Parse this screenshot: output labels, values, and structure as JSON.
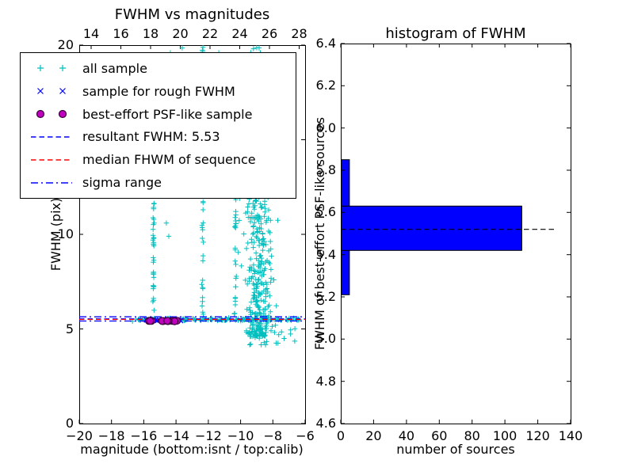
{
  "chart_data": [
    {
      "type": "scatter",
      "title": "FWHM vs magnitudes",
      "xlabel": "magnitude (bottom:isnt / top:calib)",
      "ylabel": "FWHM (pix)",
      "xlim": [
        -20,
        -6
      ],
      "ylim": [
        0,
        20
      ],
      "x_tick_values": [
        -20,
        -18,
        -16,
        -14,
        -12,
        -10,
        -8,
        -6
      ],
      "x_tick_labels": [
        "−20",
        "−18",
        "−16",
        "−14",
        "−12",
        "−10",
        "−8",
        "−6"
      ],
      "y_tick_values": [
        0,
        5,
        10,
        15,
        20
      ],
      "y_tick_labels": [
        "0",
        "5",
        "10",
        "15",
        "20"
      ],
      "top_axis": {
        "lim": [
          13.2,
          28.4
        ],
        "tick_values": [
          14,
          16,
          18,
          20,
          22,
          24,
          26,
          28
        ],
        "tick_labels": [
          "14",
          "16",
          "18",
          "20",
          "22",
          "24",
          "26",
          "28"
        ]
      },
      "series": {
        "all_sample": {
          "label": "all sample",
          "marker": "+",
          "color": "#00bfbf",
          "clusters": [
            {
              "dist": "band",
              "x_min": -16.35,
              "x_max": -6.35,
              "y_center": 5.5,
              "y_spread": 0.1,
              "count": 140
            },
            {
              "dist": "vstreak",
              "x_center": -15.4,
              "x_spread": 0.07,
              "y_min": 5.7,
              "y_max": 12.6,
              "count": 32
            },
            {
              "dist": "vstreak",
              "x_center": -12.35,
              "x_spread": 0.1,
              "y_min": 5.7,
              "y_max": 20,
              "count": 48
            },
            {
              "dist": "vstreak",
              "x_center": -10.32,
              "x_spread": 0.08,
              "y_min": 5.7,
              "y_max": 19.8,
              "count": 45
            },
            {
              "dist": "cloud",
              "x_center": -8.9,
              "x_spread": 1.2,
              "y_min": 4.6,
              "y_max": 20,
              "y_pow": 1.6,
              "count": 380
            },
            {
              "dist": "cloud",
              "x_center": -9.0,
              "x_spread": 2.0,
              "y_min": 4.6,
              "y_max": 18,
              "y_pow": 1.3,
              "count": 55
            },
            {
              "dist": "uniform",
              "x_min": -9.7,
              "x_max": -6.6,
              "y_min": 4.1,
              "y_max": 5.25,
              "count": 22
            }
          ],
          "extra_points": [
            [
              -14.35,
              19.6
            ],
            [
              -13.62,
              19.85
            ],
            [
              -13.3,
              18.7
            ],
            [
              -12.9,
              19.3
            ],
            [
              -11.35,
              19.6
            ],
            [
              -14.6,
              10.6
            ],
            [
              -14.45,
              9.9
            ],
            [
              -16.5,
              5.52
            ],
            [
              -16.7,
              5.4
            ],
            [
              -7.3,
              4.5
            ],
            [
              -6.9,
              4.95
            ],
            [
              -7.8,
              4.25
            ]
          ]
        },
        "rough_fwhm_sample": {
          "label": "sample for rough FWHM",
          "marker": "x",
          "color": "#0000ff",
          "clusters": [
            {
              "dist": "band",
              "x_min": -15.9,
              "x_max": -13.55,
              "y_center": 5.46,
              "y_spread": 0.06,
              "count": 28
            }
          ]
        },
        "psf_like_sample": {
          "label": "best-effort PSF-like sample",
          "marker": "o",
          "fill": "#bf00bf",
          "edge": "#3a003a",
          "clusters": [
            {
              "dist": "band",
              "x_min": -15.72,
              "x_max": -13.82,
              "y_center": 5.42,
              "y_spread": 0.035,
              "count": 12
            }
          ]
        }
      },
      "lines": [
        {
          "label": "resultant FWHM: 5.53",
          "y_values": [
            5.53
          ],
          "color": "#0000ff",
          "style": "dashed"
        },
        {
          "label": "median FHWM of sequence",
          "y_values": [
            5.5
          ],
          "color": "#ff0000",
          "style": "dashed"
        },
        {
          "label": "sigma range",
          "y_values": [
            5.42,
            5.64
          ],
          "color": "#0000ff",
          "style": "dashdot"
        }
      ]
    },
    {
      "type": "bar",
      "orientation": "horizontal",
      "title": "histogram of FWHM",
      "xlabel": "number of sources",
      "ylabel": "FWHM of best-effort PSF-like sources",
      "xlim": [
        0,
        140
      ],
      "ylim": [
        4.6,
        6.4
      ],
      "x_tick_values": [
        0,
        20,
        40,
        60,
        80,
        100,
        120,
        140
      ],
      "x_tick_labels": [
        "0",
        "20",
        "40",
        "60",
        "80",
        "100",
        "120",
        "140"
      ],
      "y_tick_values": [
        4.6,
        4.8,
        5.0,
        5.2,
        5.4,
        5.6,
        5.8,
        6.0,
        6.2,
        6.4
      ],
      "y_tick_labels": [
        "4.6",
        "4.8",
        "5.0",
        "5.2",
        "5.4",
        "5.6",
        "5.8",
        "6.0",
        "6.2",
        "6.4"
      ],
      "bar_color": "#0000ff",
      "bar_edge_color": "#000000",
      "bins": [
        {
          "fwhm_from": 5.21,
          "fwhm_to": 5.42,
          "count": 5
        },
        {
          "fwhm_from": 5.42,
          "fwhm_to": 5.63,
          "count": 110
        },
        {
          "fwhm_from": 5.63,
          "fwhm_to": 5.85,
          "count": 5
        }
      ],
      "median_line": {
        "y": 5.52,
        "x_from": 0,
        "x_to": 130,
        "color": "#000000",
        "style": "dashed"
      }
    }
  ],
  "legend": {
    "entries": [
      {
        "label": "all sample",
        "marker": "+",
        "color": "#00bfbf"
      },
      {
        "label": "sample for rough FWHM",
        "marker": "x",
        "color": "#0000ff"
      },
      {
        "label": "best-effort PSF-like sample",
        "marker": "o",
        "color": "#bf00bf",
        "edge": "#3a003a"
      },
      {
        "label": "resultant FWHM: 5.53",
        "line": "dashed",
        "color": "#0000ff"
      },
      {
        "label": "median FHWM of sequence",
        "line": "dashed",
        "color": "#ff0000"
      },
      {
        "label": "sigma range",
        "line": "dashdot",
        "color": "#0000ff"
      }
    ]
  }
}
